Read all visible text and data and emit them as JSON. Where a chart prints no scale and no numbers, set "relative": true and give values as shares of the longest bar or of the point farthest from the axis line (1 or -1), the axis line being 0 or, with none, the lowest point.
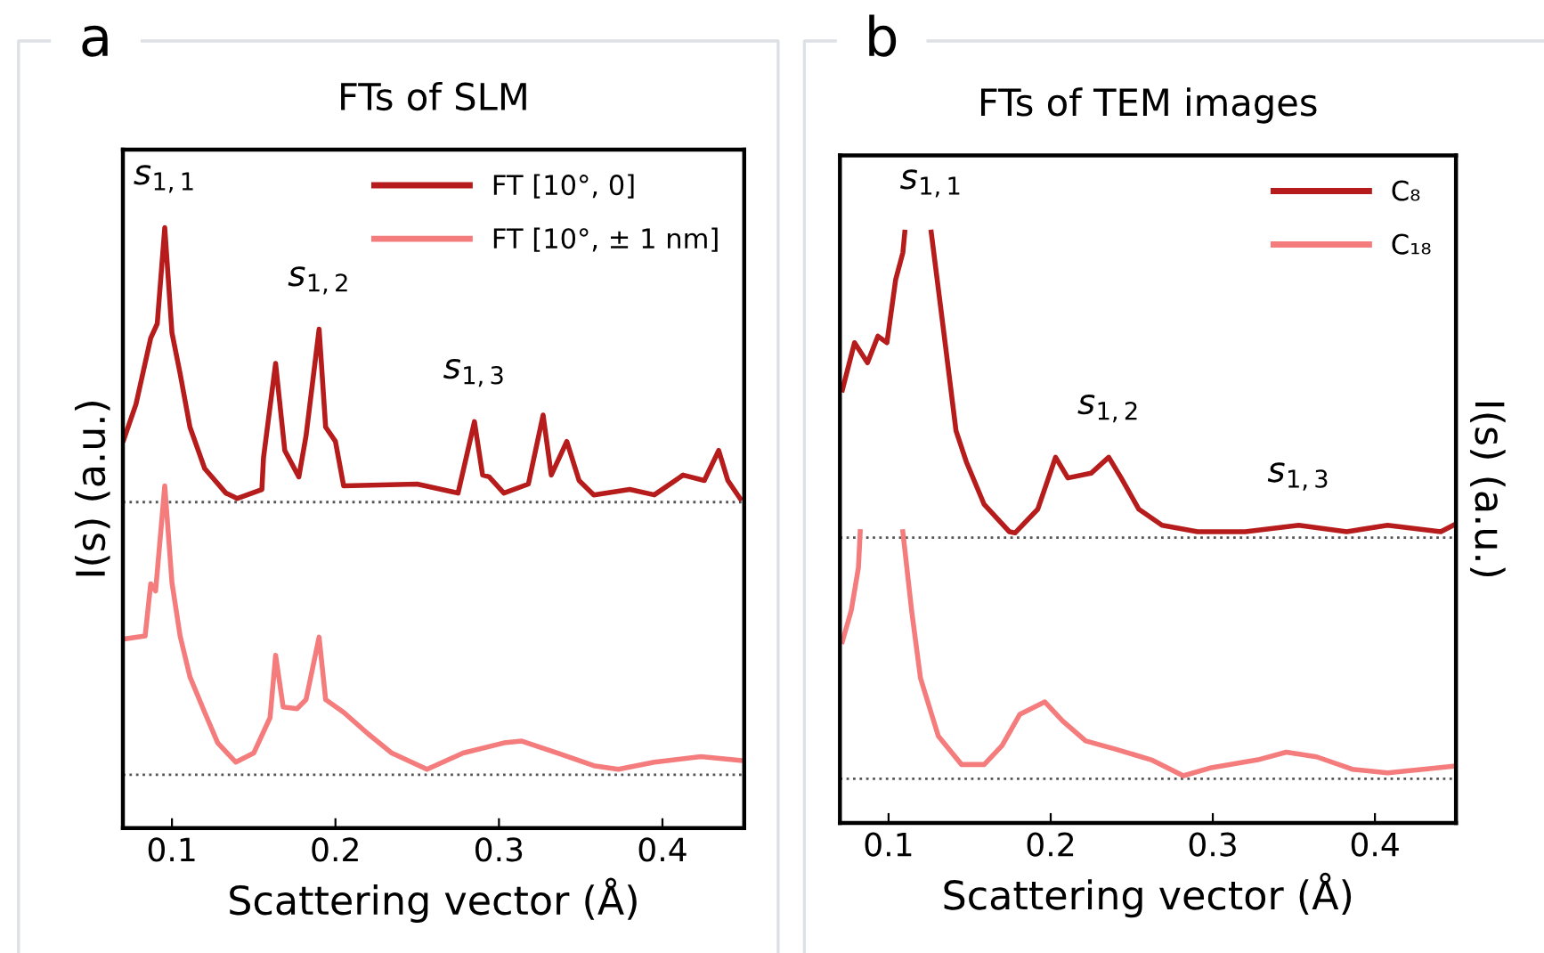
{
  "chart_data": [
    {
      "type": "line",
      "title": "FTs of SLM",
      "xlabel": "Scattering vector (Å)",
      "ylabel": "I(s) (a.u.)",
      "relative": true,
      "legend": "top right",
      "xlim": [
        0.07,
        0.45
      ],
      "xticks": [
        0.1,
        0.2,
        0.3,
        0.4
      ],
      "series": [
        {
          "name": "FT [10°, 0]",
          "color": "#b71c1c",
          "x": [
            0.0705,
            0.078,
            0.087,
            0.091,
            0.0956,
            0.1,
            0.105,
            0.111,
            0.12,
            0.133,
            0.14,
            0.155,
            0.156,
            0.1634,
            0.169,
            0.1776,
            0.182,
            0.19,
            0.194,
            0.2,
            0.205,
            0.25,
            0.275,
            0.285,
            0.29,
            0.294,
            0.303,
            0.318,
            0.327,
            0.332,
            0.3415,
            0.349,
            0.358,
            0.38,
            0.395,
            0.4126,
            0.4256,
            0.4344,
            0.44,
            0.4475
          ],
          "values": [
            0.647,
            0.706,
            0.816,
            0.84,
            1,
            0.825,
            0.757,
            0.668,
            0.599,
            0.558,
            0.549,
            0.564,
            0.617,
            0.774,
            0.629,
            0.585,
            0.653,
            0.831,
            0.668,
            0.644,
            0.57,
            0.573,
            0.558,
            0.677,
            0.588,
            0.585,
            0.558,
            0.573,
            0.688,
            0.588,
            0.644,
            0.579,
            0.555,
            0.564,
            0.555,
            0.588,
            0.579,
            0.629,
            0.579,
            0.549
          ]
        },
        {
          "name": "FT [10°, ± 1 nm]",
          "color": "#f47c7c",
          "x": [
            0.0705,
            0.0836,
            0.087,
            0.09,
            0.0956,
            0.1,
            0.105,
            0.111,
            0.12,
            0.128,
            0.139,
            0.15,
            0.16,
            0.1634,
            0.168,
            0.1765,
            0.182,
            0.19,
            0.194,
            0.205,
            0.22,
            0.2345,
            0.256,
            0.278,
            0.303,
            0.314,
            0.336,
            0.358,
            0.373,
            0.395,
            0.4235,
            0.4475
          ],
          "values": [
            0.315,
            0.32,
            0.407,
            0.395,
            0.57,
            0.409,
            0.32,
            0.252,
            0.193,
            0.142,
            0.11,
            0.125,
            0.184,
            0.288,
            0.202,
            0.199,
            0.214,
            0.318,
            0.214,
            0.193,
            0.157,
            0.125,
            0.098,
            0.125,
            0.142,
            0.145,
            0.125,
            0.104,
            0.098,
            0.11,
            0.119,
            0.113
          ]
        }
      ],
      "ref_lines": [
        {
          "axis": "y",
          "value": 0.543,
          "color": "#555555",
          "line_style": "dotted"
        },
        {
          "axis": "y",
          "value": 0.089,
          "color": "#555555",
          "line_style": "dotted"
        }
      ],
      "annotations": [
        "a",
        {
          "text": "s$_{1,1}$",
          "x": 0.0956,
          "y": 1
        },
        {
          "text": "s$_{1,2}$",
          "x": 0.19,
          "y": 0.831
        },
        {
          "text": "s$_{1,3}$",
          "x": 0.285,
          "y": 0.677
        }
      ]
    },
    {
      "type": "line",
      "title": "FTs of TEM images",
      "xlabel": "Scattering vector (Å)",
      "y2label": "I(s) (a.u.)",
      "relative": true,
      "legend": "top right",
      "xlim": [
        0.07,
        0.45
      ],
      "xticks": [
        0.1,
        0.2,
        0.3,
        0.4
      ],
      "series": [
        {
          "name": "C₈",
          "color": "#b71c1c",
          "x": [
            0.0715,
            0.079,
            0.087,
            0.0934,
            0.099,
            0.1044,
            0.1088,
            0.11,
            0.118,
            0.1263,
            0.134,
            0.1416,
            0.148,
            0.159,
            0.1745,
            0.178,
            0.192,
            0.203,
            0.2106,
            0.2249,
            0.2358,
            0.2435,
            0.2544,
            0.2687,
            0.2906,
            0.32,
            0.353,
            0.3826,
            0.4078,
            0.4406,
            0.4483
          ],
          "values": [
            0.733,
            0.813,
            0.779,
            0.824,
            0.813,
            0.92,
            0.965,
            1,
            null,
            1,
            0.832,
            0.664,
            0.611,
            0.539,
            0.493,
            0.491,
            0.531,
            0.619,
            0.584,
            0.592,
            0.619,
            0.584,
            0.531,
            0.504,
            0.493,
            0.493,
            0.504,
            0.493,
            0.504,
            0.493,
            0.504
          ]
        },
        {
          "name": "C₁₈",
          "color": "#f47c7c",
          "x": [
            0.0715,
            0.077,
            0.0814,
            0.0825,
            0.095,
            0.1088,
            0.1142,
            0.1197,
            0.1307,
            0.145,
            0.159,
            0.17,
            0.181,
            0.1964,
            0.2073,
            0.2216,
            0.24,
            0.262,
            0.2818,
            0.2982,
            0.3278,
            0.3453,
            0.364,
            0.386,
            0.4078,
            0.4297,
            0.4483
          ],
          "values": [
            0.307,
            0.36,
            0.432,
            0.493,
            null,
            0.493,
            0.36,
            0.245,
            0.147,
            0.099,
            0.099,
            0.131,
            0.184,
            0.205,
            0.173,
            0.139,
            0.125,
            0.107,
            0.08,
            0.093,
            0.107,
            0.12,
            0.112,
            0.091,
            0.085,
            0.091,
            0.096
          ]
        }
      ],
      "ref_lines": [
        {
          "axis": "y",
          "value": 0.483,
          "color": "#555555",
          "line_style": "dotted"
        },
        {
          "axis": "y",
          "value": 0.075,
          "color": "#555555",
          "line_style": "dotted"
        }
      ],
      "annotations": [
        "b",
        {
          "text": "s$_{1,1}$",
          "x": 0.1263,
          "y": 1
        },
        {
          "text": "s$_{1,2}$",
          "x": 0.2358,
          "y": 0.619
        },
        {
          "text": "s$_{1,3}$",
          "x": 0.353,
          "y": 0.504
        }
      ]
    }
  ]
}
